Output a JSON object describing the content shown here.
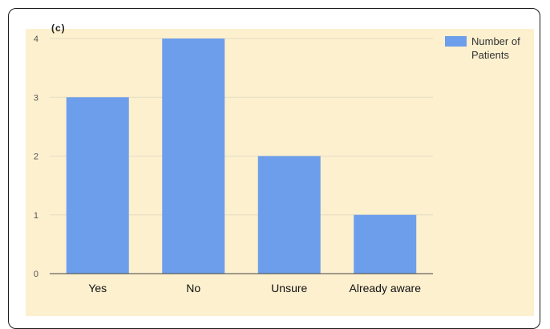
{
  "figure_label": "(c)",
  "chart_data": {
    "type": "bar",
    "categories": [
      "Yes",
      "No",
      "Unsure",
      "Already aware"
    ],
    "series": [
      {
        "name": "Number of Patients",
        "values": [
          3,
          4,
          2,
          1
        ],
        "color": "#6d9eeb"
      }
    ],
    "yticks": [
      0,
      1,
      2,
      3,
      4
    ],
    "ylim": [
      0,
      4
    ],
    "grid": true,
    "legend_position": "top-right",
    "legend_lines": [
      "Number of",
      "Patients"
    ]
  }
}
